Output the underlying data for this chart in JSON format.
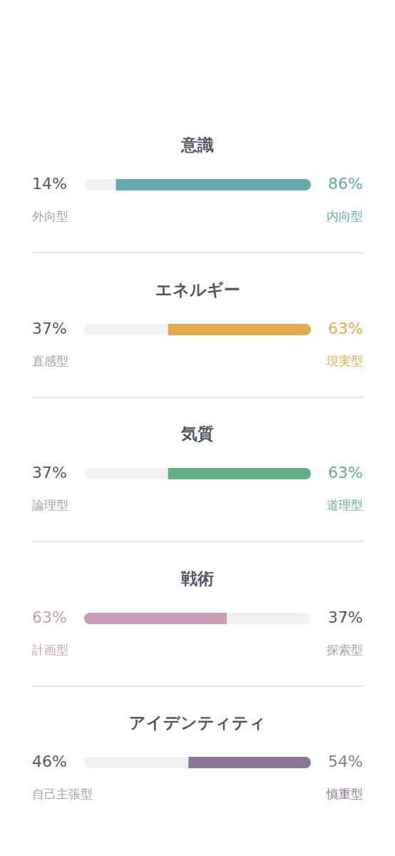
{
  "chart_data": [
    {
      "type": "bar",
      "orientation": "horizontal",
      "stacked": true,
      "title": "意識",
      "categories": [
        null
      ],
      "xlim": [
        0,
        100
      ],
      "tick_labels": false,
      "series": [
        {
          "name": "外向型",
          "color": "#f1f1f1",
          "values": [
            14
          ],
          "value_labels": [
            "14%"
          ]
        },
        {
          "name": "内向型",
          "color": "#64a9ad",
          "values": [
            86
          ],
          "value_labels": [
            "86%"
          ]
        }
      ]
    },
    {
      "type": "bar",
      "orientation": "horizontal",
      "stacked": true,
      "title": "エネルギー",
      "categories": [
        null
      ],
      "xlim": [
        0,
        100
      ],
      "tick_labels": false,
      "series": [
        {
          "name": "直感型",
          "color": "#f1f1f1",
          "values": [
            37
          ],
          "value_labels": [
            "37%"
          ]
        },
        {
          "name": "現実型",
          "color": "#e0aa4e",
          "values": [
            63
          ],
          "value_labels": [
            "63%"
          ]
        }
      ]
    },
    {
      "type": "bar",
      "orientation": "horizontal",
      "stacked": true,
      "title": "気質",
      "categories": [
        null
      ],
      "xlim": [
        0,
        100
      ],
      "tick_labels": false,
      "series": [
        {
          "name": "論理型",
          "color": "#f1f1f1",
          "values": [
            37
          ],
          "value_labels": [
            "37%"
          ]
        },
        {
          "name": "道理型",
          "color": "#65ad89",
          "values": [
            63
          ],
          "value_labels": [
            "63%"
          ]
        }
      ]
    },
    {
      "type": "bar",
      "orientation": "horizontal",
      "stacked": true,
      "title": "戦術",
      "categories": [
        null
      ],
      "xlim": [
        0,
        100
      ],
      "tick_labels": false,
      "series": [
        {
          "name": "計画型",
          "color": "#c89db5",
          "values": [
            63
          ],
          "value_labels": [
            "63%"
          ]
        },
        {
          "name": "探索型",
          "color": "#f1f1f1",
          "values": [
            37
          ],
          "value_labels": [
            "37%"
          ]
        }
      ]
    },
    {
      "type": "bar",
      "orientation": "horizontal",
      "stacked": true,
      "title": "アイデンティティ",
      "categories": [
        null
      ],
      "xlim": [
        0,
        100
      ],
      "tick_labels": false,
      "series": [
        {
          "name": "自己主張型",
          "color": "#f1f1f1",
          "values": [
            46
          ],
          "value_labels": [
            "46%"
          ]
        },
        {
          "name": "慎重型",
          "color": "#8b7598",
          "values": [
            54
          ],
          "value_labels": [
            "54%"
          ]
        }
      ]
    }
  ]
}
